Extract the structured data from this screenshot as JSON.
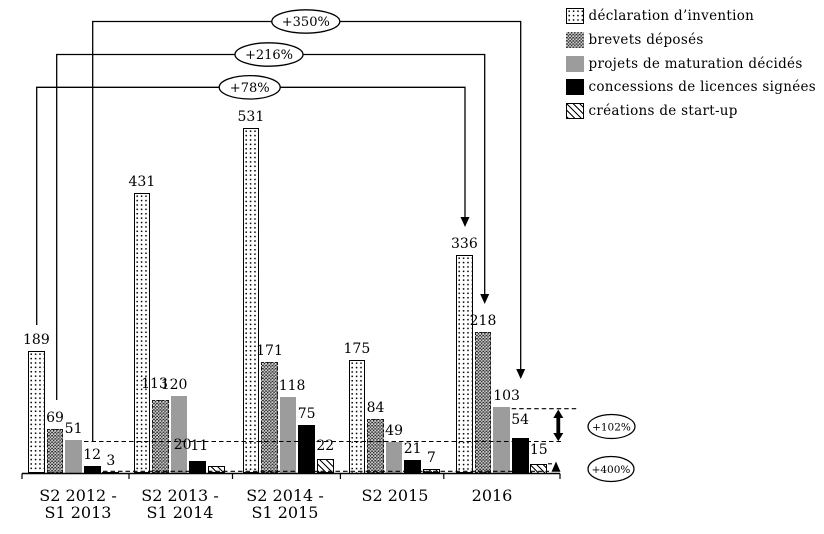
{
  "chart_data": {
    "type": "bar",
    "title": "",
    "xlabel": "",
    "ylabel": "",
    "ylim": [
      0,
      560
    ],
    "grid": false,
    "legend_position": "top-right",
    "value_labels_shown": true,
    "categories": [
      [
        "S2 2012 -",
        "S1 2013"
      ],
      [
        "S2 2013 -",
        "S1 2014"
      ],
      [
        "S2 2014 -",
        "S1 2015"
      ],
      [
        "S2 2015"
      ],
      [
        "2016"
      ]
    ],
    "series": [
      {
        "name": "déclaration d’invention",
        "pattern": "dots",
        "values": [
          189,
          431,
          531,
          175,
          336
        ]
      },
      {
        "name": "brevets déposés",
        "pattern": "crosshatch",
        "values": [
          69,
          113,
          171,
          84,
          218
        ]
      },
      {
        "name": "projets de maturation décidés",
        "pattern": "solid-gray",
        "values": [
          51,
          120,
          118,
          49,
          103
        ]
      },
      {
        "name": "concessions de licences signées",
        "pattern": "solid-black",
        "values": [
          12,
          20,
          75,
          21,
          54
        ]
      },
      {
        "name": "créations de start-up",
        "pattern": "diagonal-hatch",
        "values": [
          3,
          11,
          22,
          7,
          15
        ]
      }
    ],
    "annotations": [
      {
        "id": "growth-concessions",
        "label": "+350%"
      },
      {
        "id": "growth-brevets",
        "label": "+216%"
      },
      {
        "id": "growth-declaration",
        "label": "+78%"
      },
      {
        "id": "growth-maturation",
        "label": "+102%"
      },
      {
        "id": "growth-startup",
        "label": "+400%"
      }
    ],
    "colors": {
      "gray": "#9c9c9c",
      "black": "#000000",
      "background": "#ffffff"
    }
  }
}
